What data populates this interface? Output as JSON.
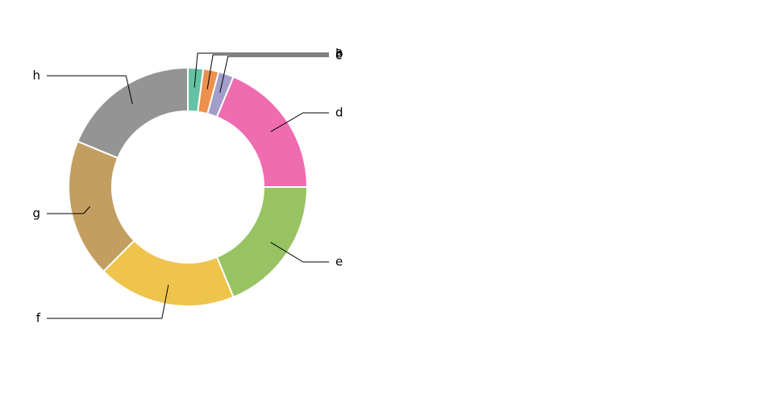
{
  "chart_data": {
    "type": "pie",
    "variant": "donut",
    "categories": [
      "a",
      "b",
      "c",
      "d",
      "e",
      "f",
      "g",
      "h"
    ],
    "values": [
      2,
      2,
      2,
      18,
      18,
      18,
      18,
      18
    ],
    "colors": [
      "#66c2a5",
      "#fc8d62",
      "#8da0cb",
      "#e78ac3",
      "#a6d854",
      "#ffd92f",
      "#e5c494",
      "#b3b3b3"
    ],
    "title": "",
    "legend": "none"
  }
}
